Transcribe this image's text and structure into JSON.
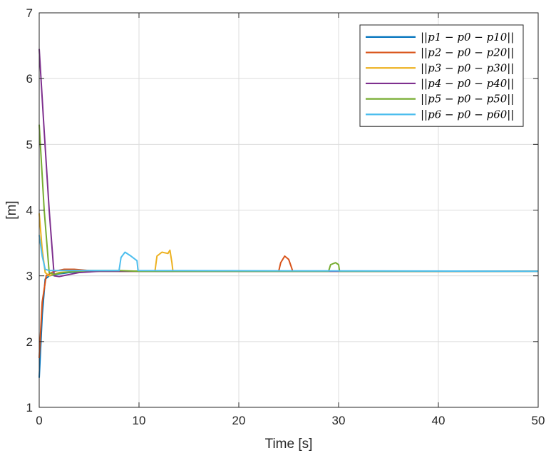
{
  "chart_data": {
    "type": "line",
    "xlabel": "Time  [s]",
    "ylabel": "[m]",
    "xlim": [
      0,
      50
    ],
    "ylim": [
      1,
      7
    ],
    "xticks": [
      0,
      10,
      20,
      30,
      40,
      50
    ],
    "yticks": [
      1,
      2,
      3,
      4,
      5,
      6,
      7
    ],
    "xtick_labels": [
      "0",
      "10",
      "20",
      "30",
      "40",
      "50"
    ],
    "ytick_labels": [
      "1",
      "2",
      "3",
      "4",
      "5",
      "6",
      "7"
    ],
    "grid": true,
    "legend_position": "top-right",
    "series": [
      {
        "name": "||p1 − p0 − p10||",
        "color": "#0072BD",
        "points": [
          [
            0,
            1.45
          ],
          [
            0.3,
            2.4
          ],
          [
            0.6,
            2.95
          ],
          [
            1,
            3.0
          ],
          [
            2,
            3.03
          ],
          [
            3,
            3.05
          ],
          [
            5,
            3.07
          ],
          [
            8,
            3.07
          ],
          [
            50,
            3.07
          ]
        ]
      },
      {
        "name": "||p2 − p0 − p20||",
        "color": "#D95319",
        "points": [
          [
            0,
            1.75
          ],
          [
            0.3,
            2.6
          ],
          [
            0.7,
            3.0
          ],
          [
            1.5,
            3.07
          ],
          [
            2.5,
            3.1
          ],
          [
            3.5,
            3.1
          ],
          [
            5,
            3.08
          ],
          [
            8,
            3.07
          ],
          [
            24,
            3.07
          ],
          [
            24.2,
            3.2
          ],
          [
            24.6,
            3.3
          ],
          [
            25,
            3.25
          ],
          [
            25.3,
            3.12
          ],
          [
            25.4,
            3.07
          ],
          [
            50,
            3.07
          ]
        ]
      },
      {
        "name": "||p3 − p0 − p30||",
        "color": "#EDB120",
        "points": [
          [
            0,
            3.95
          ],
          [
            0.3,
            3.4
          ],
          [
            0.6,
            3.05
          ],
          [
            1,
            3.0
          ],
          [
            2,
            3.05
          ],
          [
            4,
            3.07
          ],
          [
            11.6,
            3.07
          ],
          [
            11.8,
            3.3
          ],
          [
            12.3,
            3.36
          ],
          [
            12.9,
            3.34
          ],
          [
            13.1,
            3.39
          ],
          [
            13.3,
            3.2
          ],
          [
            13.4,
            3.07
          ],
          [
            50,
            3.07
          ]
        ]
      },
      {
        "name": "||p4 − p0 − p40||",
        "color": "#7E2F8E",
        "points": [
          [
            0,
            6.45
          ],
          [
            0.5,
            5.2
          ],
          [
            1.0,
            4.0
          ],
          [
            1.5,
            3.0
          ],
          [
            2,
            2.99
          ],
          [
            3,
            3.02
          ],
          [
            4,
            3.05
          ],
          [
            6,
            3.07
          ],
          [
            50,
            3.07
          ]
        ]
      },
      {
        "name": "||p5 − p0 − p50||",
        "color": "#77AC30",
        "points": [
          [
            0,
            5.3
          ],
          [
            0.5,
            4.0
          ],
          [
            1.0,
            3.05
          ],
          [
            1.5,
            3.02
          ],
          [
            2,
            3.04
          ],
          [
            3,
            3.06
          ],
          [
            5,
            3.08
          ],
          [
            8,
            3.08
          ],
          [
            10,
            3.07
          ],
          [
            29,
            3.07
          ],
          [
            29.2,
            3.17
          ],
          [
            29.7,
            3.2
          ],
          [
            30,
            3.17
          ],
          [
            30.1,
            3.07
          ],
          [
            50,
            3.07
          ]
        ]
      },
      {
        "name": "||p6 − p0 − p60||",
        "color": "#4DBEEE",
        "points": [
          [
            0,
            3.62
          ],
          [
            0.3,
            3.3
          ],
          [
            0.6,
            3.1
          ],
          [
            1,
            3.08
          ],
          [
            3,
            3.08
          ],
          [
            8,
            3.08
          ],
          [
            8.2,
            3.28
          ],
          [
            8.6,
            3.36
          ],
          [
            9.2,
            3.3
          ],
          [
            9.8,
            3.23
          ],
          [
            9.9,
            3.08
          ],
          [
            50,
            3.07
          ]
        ]
      }
    ]
  }
}
